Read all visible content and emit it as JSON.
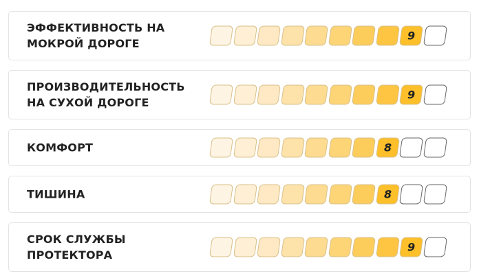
{
  "max_score": 10,
  "colors": [
    "#fef4e3",
    "#feefd5",
    "#fee9c4",
    "#fde2aa",
    "#fddb90",
    "#fdd577",
    "#fdcd5c",
    "#fdc542",
    "#fdbf2a"
  ],
  "empty_color": "#ffffff",
  "ratings": [
    {
      "label": "ЭФФЕКТИВНОСТЬ НА МОКРОЙ ДОРОГЕ",
      "score": 9
    },
    {
      "label": "ПРОИЗВОДИТЕЛЬНОСТЬ НА СУХОЙ ДОРОГЕ",
      "score": 9
    },
    {
      "label": "КОМФОРТ",
      "score": 8
    },
    {
      "label": "ТИШИНА",
      "score": 8
    },
    {
      "label": "СРОК СЛУЖБЫ ПРОТЕКТОРА",
      "score": 9
    }
  ]
}
